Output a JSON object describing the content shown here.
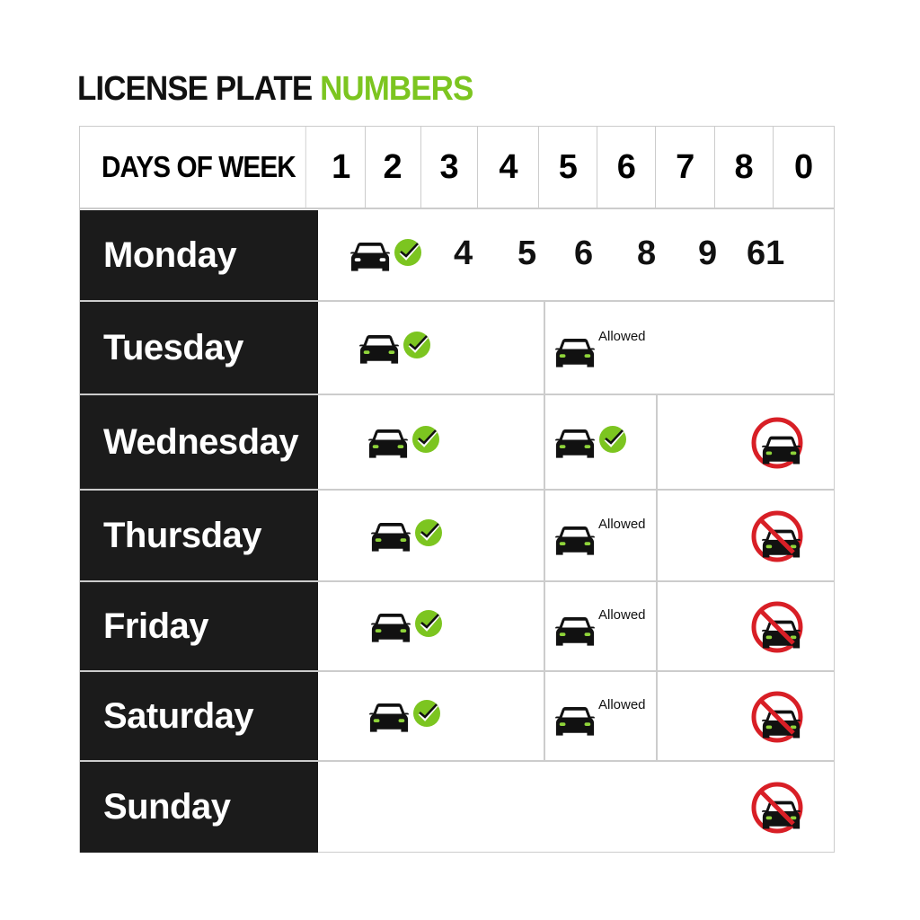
{
  "title": {
    "main": "LICENSE PLATE",
    "accent": "NUMBERS"
  },
  "colors": {
    "accent": "#7cc520",
    "prohibited": "#d81f26",
    "day_bg": "#1b1b1b"
  },
  "header": {
    "label": "DAYS OF WEEK",
    "digits": [
      "1",
      "2",
      "3",
      "4",
      "5",
      "6",
      "7",
      "8",
      "0"
    ]
  },
  "rows": [
    {
      "day": "Monday",
      "left": "car-check",
      "numbers": [
        "4",
        "5",
        "6",
        "8",
        "9",
        "61"
      ]
    },
    {
      "day": "Tuesday",
      "left": "car-check",
      "middle": "car-allowed",
      "middle_text": "Allowed"
    },
    {
      "day": "Wednesday",
      "left": "car-check",
      "middle": "car-check",
      "right": "no-car"
    },
    {
      "day": "Thursday",
      "left": "car-check",
      "middle": "car-allowed",
      "middle_text": "Allowed",
      "right": "no-car-slash"
    },
    {
      "day": "Friday",
      "left": "car-check",
      "middle": "car-allowed",
      "middle_text": "Allowed",
      "right": "no-car-slash"
    },
    {
      "day": "Saturday",
      "left": "car-check",
      "middle": "car-allowed",
      "middle_text": "Allowed",
      "right": "no-car-slash"
    },
    {
      "day": "Sunday",
      "right": "no-car-slash"
    }
  ]
}
